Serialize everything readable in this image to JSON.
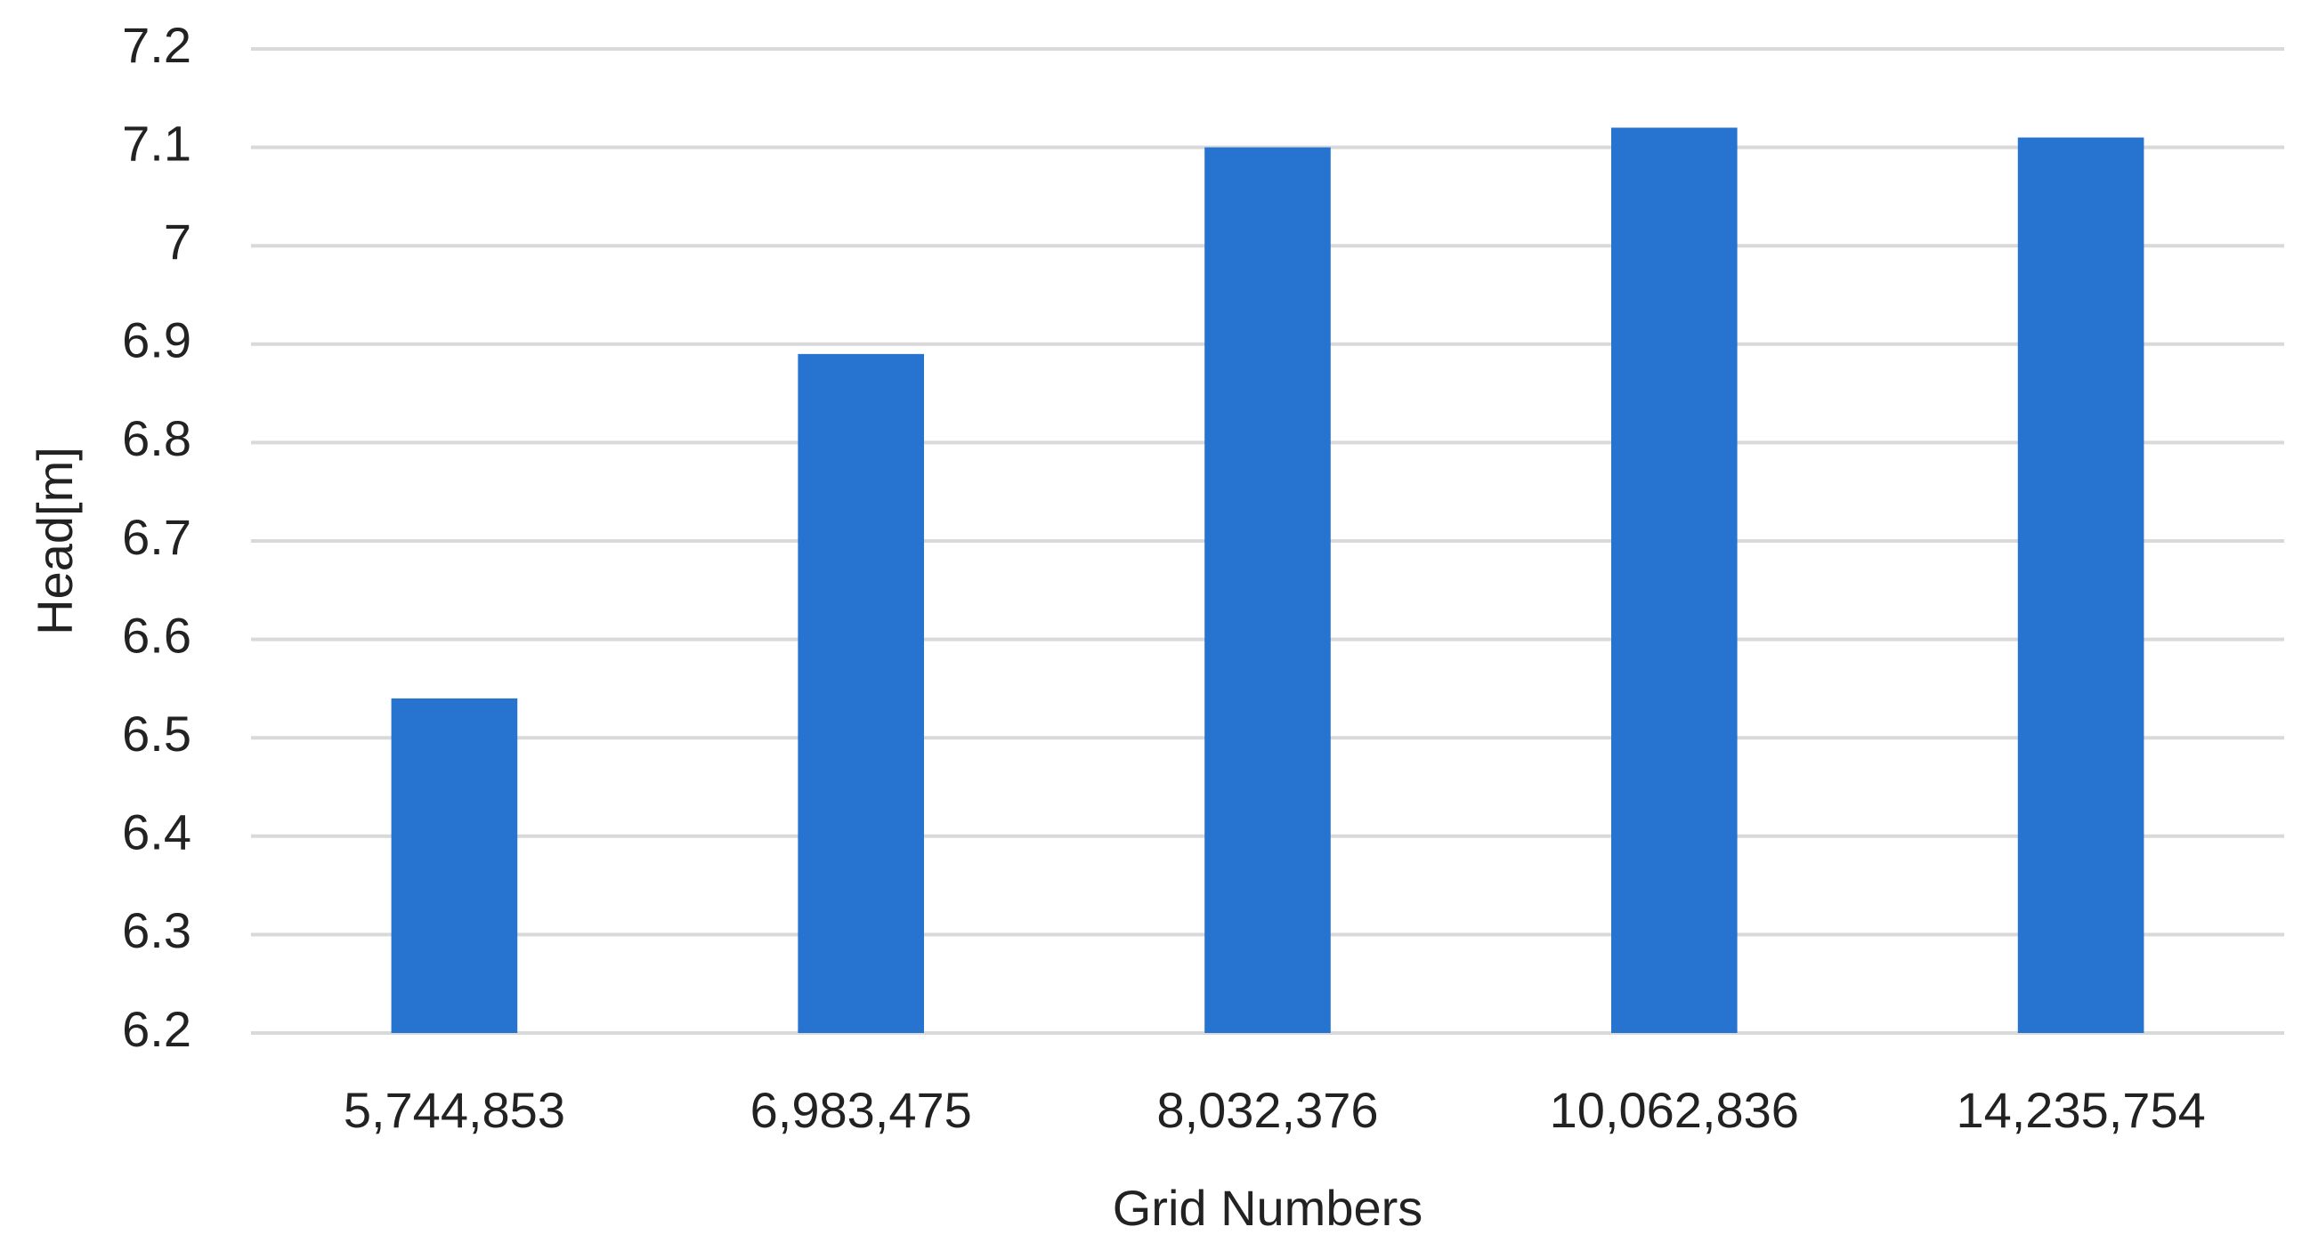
{
  "chart_data": {
    "type": "bar",
    "x_label": "Grid Numbers",
    "y_label": "Head[m]",
    "categories": [
      "5,744,853",
      "6,983,475",
      "8,032,376",
      "10,062,836",
      "14,235,754"
    ],
    "values": [
      6.54,
      6.89,
      7.1,
      7.12,
      7.11
    ],
    "color": "#2674d0",
    "ylim": [
      6.2,
      7.2
    ],
    "yticks": [
      6.2,
      6.3,
      6.4,
      6.5,
      6.6,
      6.7,
      6.8,
      6.9,
      7,
      7.1,
      7.2
    ],
    "grid": true
  }
}
